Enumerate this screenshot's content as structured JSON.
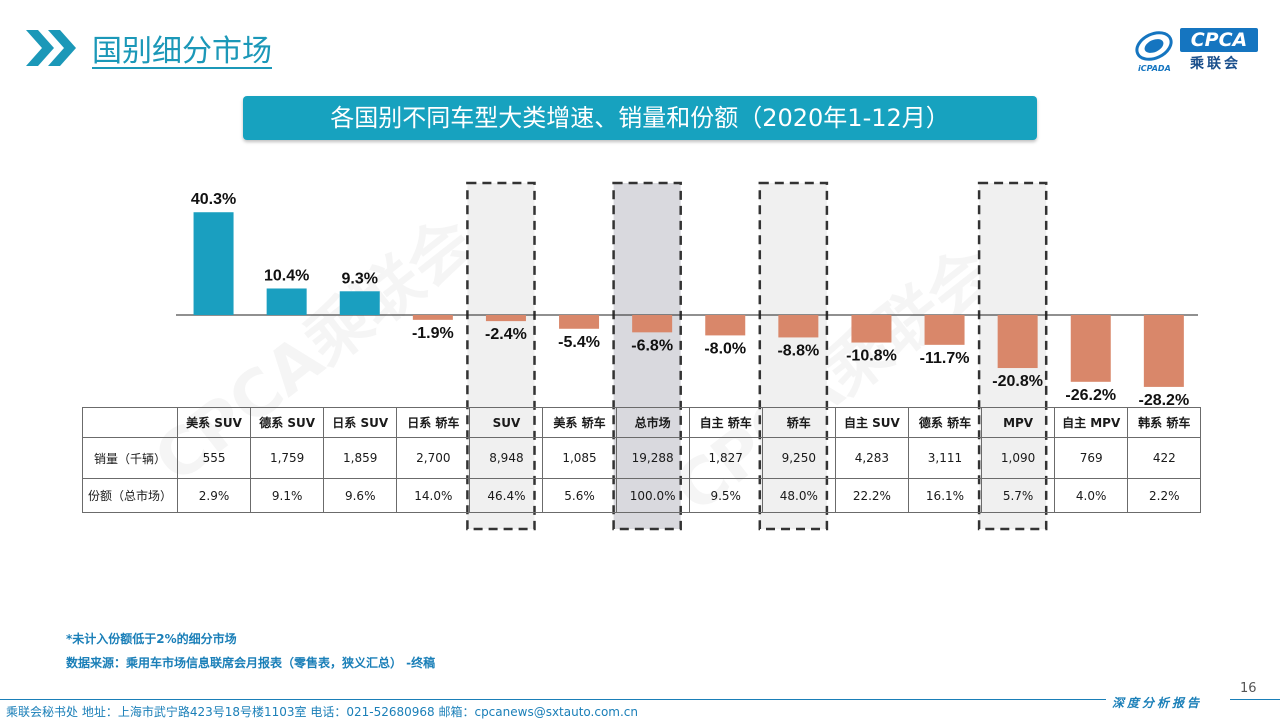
{
  "header": {
    "title": "国别细分市场"
  },
  "logo": {
    "brand": "CPCA",
    "sub": "乘联会",
    "mark_text": "iCPADA"
  },
  "banner": {
    "title": "各国别不同车型大类增速、销量和份额（2020年1-12月）"
  },
  "watermark": {
    "text": "CPCA乘联会"
  },
  "chart_data": {
    "type": "bar",
    "categories": [
      "美系 SUV",
      "德系 SUV",
      "日系 SUV",
      "日系 轿车",
      "SUV",
      "美系 轿车",
      "总市场",
      "自主 轿车",
      "轿车",
      "自主 SUV",
      "德系 轿车",
      "MPV",
      "自主 MPV",
      "韩系 轿车"
    ],
    "values": [
      40.3,
      10.4,
      9.3,
      -1.9,
      -2.4,
      -5.4,
      -6.8,
      -8.0,
      -8.8,
      -10.8,
      -11.7,
      -20.8,
      -26.2,
      -28.2
    ],
    "value_labels": [
      "40.3%",
      "10.4%",
      "9.3%",
      "-1.9%",
      "-2.4%",
      "-5.4%",
      "-6.8%",
      "-8.0%",
      "-8.8%",
      "-10.8%",
      "-11.7%",
      "-20.8%",
      "-26.2%",
      "-28.2%"
    ],
    "positive_color": "#1a9fc0",
    "negative_color": "#d9876a",
    "highlighted_categories": [
      "SUV",
      "总市场",
      "轿车",
      "MPV"
    ],
    "highlight_fill": "#f0f0f0",
    "highlight_fill_strong": "#d9d9de",
    "highlight_strong_category": "总市场",
    "title": "",
    "xlabel": "",
    "ylabel": ""
  },
  "table": {
    "row_labels": [
      "销量（千辆）",
      "份额（总市场）"
    ],
    "sales": [
      "555",
      "1,759",
      "1,859",
      "2,700",
      "8,948",
      "1,085",
      "19,288",
      "1,827",
      "9,250",
      "4,283",
      "3,111",
      "1,090",
      "769",
      "422"
    ],
    "share": [
      "2.9%",
      "9.1%",
      "9.6%",
      "14.0%",
      "46.4%",
      "5.6%",
      "100.0%",
      "9.5%",
      "48.0%",
      "22.2%",
      "16.1%",
      "5.7%",
      "4.0%",
      "2.2%"
    ]
  },
  "notes": {
    "line1": "*未计入份额低于2%的细分市场",
    "line2": "数据来源：乘用车市场信息联席会月报表（零售表，狭义汇总） -终稿"
  },
  "footer": {
    "page_number": "16",
    "report_label": "深度分析报告",
    "contact": "乘联会秘书处   地址：上海市武宁路423号18号楼1103室    电话：021-52680968    邮箱：cpcanews@sxtauto.com.cn"
  }
}
